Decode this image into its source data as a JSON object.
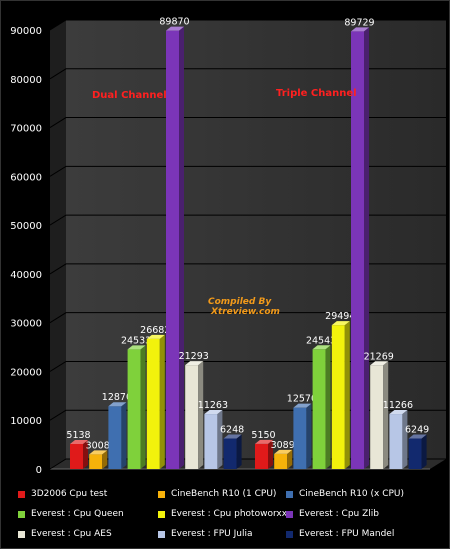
{
  "chart_data": {
    "type": "bar",
    "categories": [
      "Dual Channel",
      "Triple Channel"
    ],
    "ylim": [
      0,
      90000
    ],
    "yticks": [
      0,
      10000,
      20000,
      30000,
      40000,
      50000,
      60000,
      70000,
      80000,
      90000
    ],
    "series": [
      {
        "name": "3D2006 Cpu test",
        "color": "#e01a1a",
        "values": [
          5138,
          5150
        ]
      },
      {
        "name": "CineBench R10 (1 CPU)",
        "color": "#f6b20a",
        "values": [
          3008,
          3089
        ]
      },
      {
        "name": "CineBench R10 (x CPU)",
        "color": "#3f6fb0",
        "values": [
          12870,
          12570
        ]
      },
      {
        "name": "Everest : Cpu Queen",
        "color": "#7fd13b",
        "values": [
          24533,
          24543
        ]
      },
      {
        "name": "Everest : Cpu photoworxx",
        "color": "#f2f20c",
        "values": [
          26682,
          29494
        ]
      },
      {
        "name": "Everest : Cpu  Zlib",
        "color": "#7b35b8",
        "values": [
          89870,
          89729
        ]
      },
      {
        "name": "Everest : Cpu AES",
        "color": "#e8e6d6",
        "values": [
          21293,
          21269
        ]
      },
      {
        "name": "Everest : FPU Julia",
        "color": "#b7c6e6",
        "values": [
          11263,
          11266
        ]
      },
      {
        "name": "Everest : FPU Mandel",
        "color": "#12296e",
        "values": [
          6248,
          6249
        ]
      }
    ],
    "annotations": [
      {
        "text": "Dual Channel",
        "color": "#ff2020"
      },
      {
        "text": "Triple Channel",
        "color": "#ff2020"
      },
      {
        "text": "Compiled By",
        "color": "#f29a1a"
      },
      {
        "text": "Xtreview.com",
        "color": "#f29a1a"
      }
    ],
    "legend_position": "bottom",
    "grid": true
  }
}
